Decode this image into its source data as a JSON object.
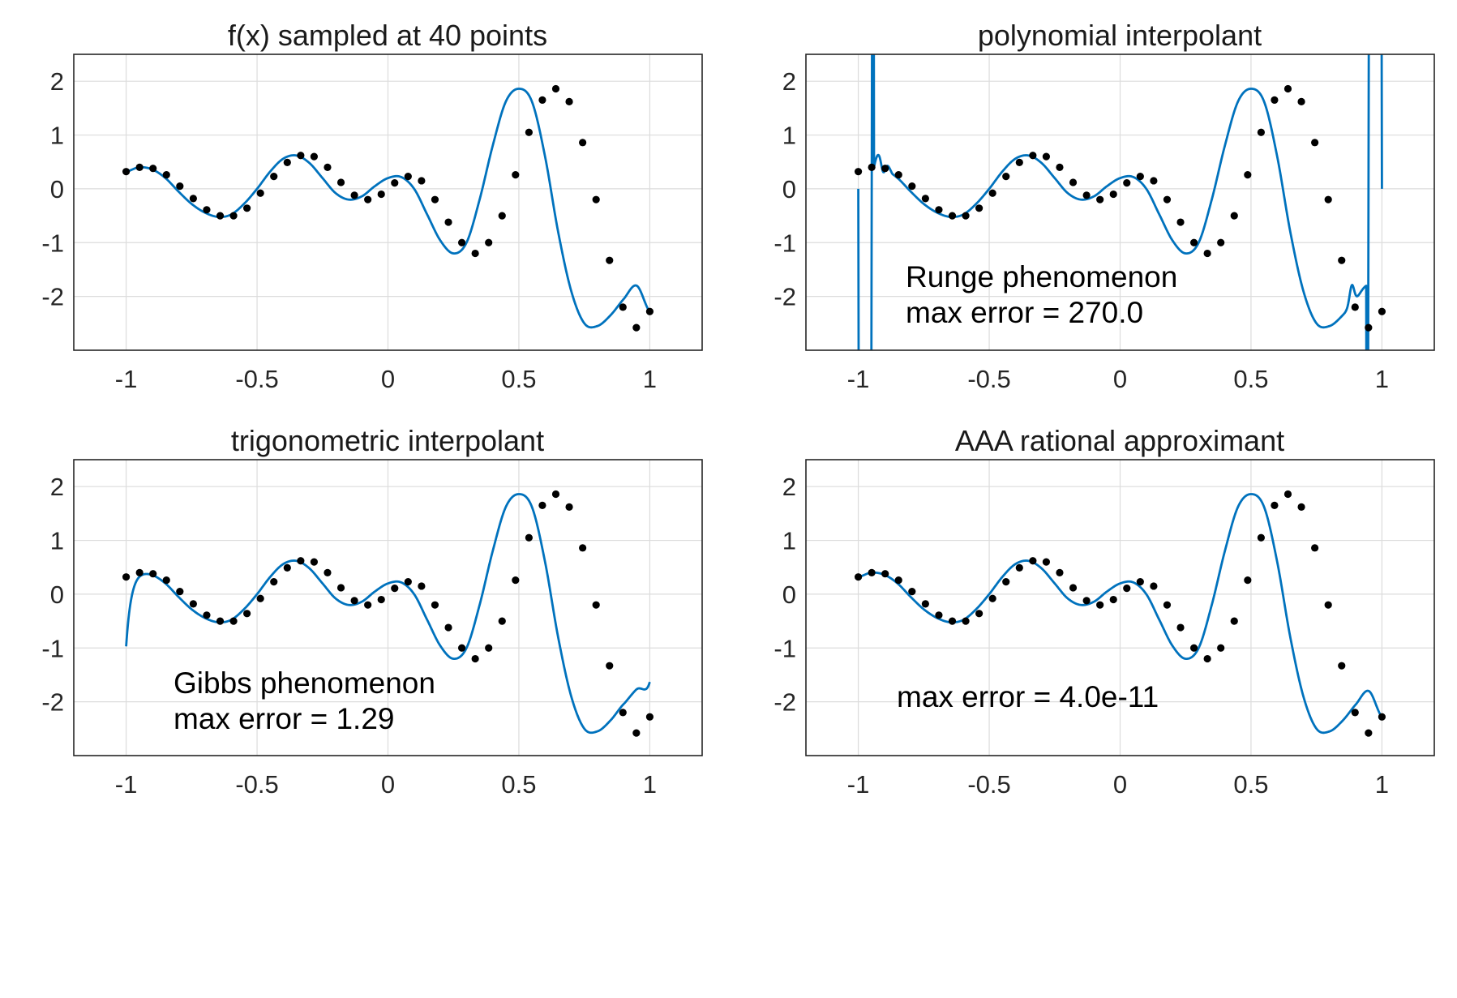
{
  "colors": {
    "curve": "#0072bd",
    "points": "#000000",
    "grid": "#dcdcdc",
    "axes": "#262626"
  },
  "chart_data": [
    {
      "type": "line",
      "title": "f(x) sampled at 40 points",
      "xlim": [
        -1.2,
        1.2
      ],
      "ylim": [
        -3,
        2.5
      ],
      "xticks": [
        -1,
        -0.5,
        0,
        0.5,
        1
      ],
      "xtick_labels": [
        "-1",
        "-0.5",
        "0",
        "0.5",
        "1"
      ],
      "yticks": [
        -2,
        -1,
        0,
        1,
        2
      ],
      "ytick_labels": [
        "-2",
        "-1",
        "0",
        "1",
        "2"
      ],
      "grid": true,
      "curve": "function",
      "annotations": [],
      "series": [
        {
          "kind": "curve",
          "x": [
            -1.0,
            -0.95,
            -0.9,
            -0.85,
            -0.8,
            -0.75,
            -0.7,
            -0.65,
            -0.6,
            -0.55,
            -0.5,
            -0.45,
            -0.4,
            -0.35,
            -0.3,
            -0.25,
            -0.2,
            -0.15,
            -0.1,
            -0.05,
            0.0,
            0.05,
            0.1,
            0.15,
            0.2,
            0.25,
            0.3,
            0.35,
            0.4,
            0.45,
            0.5,
            0.55,
            0.6,
            0.65,
            0.7,
            0.75,
            0.8,
            0.85,
            0.9,
            0.95,
            1.0
          ],
          "y": [
            0.32,
            0.4,
            0.36,
            0.2,
            -0.05,
            -0.28,
            -0.44,
            -0.52,
            -0.48,
            -0.28,
            0.0,
            0.32,
            0.56,
            0.62,
            0.48,
            0.2,
            -0.08,
            -0.2,
            -0.14,
            0.05,
            0.2,
            0.22,
            0.0,
            -0.48,
            -0.96,
            -1.2,
            -1.0,
            -0.2,
            0.8,
            1.62,
            1.86,
            1.62,
            0.6,
            -0.8,
            -1.9,
            -2.5,
            -2.55,
            -2.35,
            -2.05,
            -1.8,
            -2.28
          ]
        },
        {
          "kind": "points",
          "x": [
            -1.0,
            -0.9487,
            -0.8974,
            -0.8462,
            -0.7949,
            -0.7436,
            -0.6923,
            -0.641,
            -0.5897,
            -0.5385,
            -0.4872,
            -0.4359,
            -0.3846,
            -0.3333,
            -0.2821,
            -0.2308,
            -0.1795,
            -0.1282,
            -0.0769,
            -0.0256,
            0.0256,
            0.0769,
            0.1282,
            0.1795,
            0.2308,
            0.2821,
            0.3333,
            0.3846,
            0.4359,
            0.4872,
            0.5385,
            0.5897,
            0.641,
            0.6923,
            0.7436,
            0.7949,
            0.8462,
            0.8974,
            0.9487,
            1.0
          ],
          "y": [
            0.32,
            0.4,
            0.38,
            0.26,
            0.05,
            -0.18,
            -0.39,
            -0.5,
            -0.5,
            -0.36,
            -0.08,
            0.23,
            0.49,
            0.62,
            0.6,
            0.4,
            0.12,
            -0.12,
            -0.2,
            -0.1,
            0.11,
            0.23,
            0.15,
            -0.2,
            -0.62,
            -1.0,
            -1.2,
            -1.0,
            -0.5,
            0.26,
            1.05,
            1.65,
            1.86,
            1.62,
            0.86,
            -0.2,
            -1.33,
            -2.2,
            -2.58,
            -2.28
          ]
        }
      ]
    },
    {
      "type": "line",
      "title": "polynomial interpolant",
      "xlim": [
        -1.2,
        1.2
      ],
      "ylim": [
        -3,
        2.5
      ],
      "xticks": [
        -1,
        -0.5,
        0,
        0.5,
        1
      ],
      "xtick_labels": [
        "-1",
        "-0.5",
        "0",
        "0.5",
        "1"
      ],
      "yticks": [
        -2,
        -1,
        0,
        1,
        2
      ],
      "ytick_labels": [
        "-2",
        "-1",
        "0",
        "1",
        "2"
      ],
      "grid": true,
      "curve": "runge",
      "annotations": [
        "Runge phenomenon",
        "max error = 270.0"
      ],
      "series": [
        {
          "kind": "curve",
          "x": [],
          "y": []
        },
        {
          "kind": "points",
          "x": [
            -1.0,
            -0.9487,
            -0.8974,
            -0.8462,
            -0.7949,
            -0.7436,
            -0.6923,
            -0.641,
            -0.5897,
            -0.5385,
            -0.4872,
            -0.4359,
            -0.3846,
            -0.3333,
            -0.2821,
            -0.2308,
            -0.1795,
            -0.1282,
            -0.0769,
            -0.0256,
            0.0256,
            0.0769,
            0.1282,
            0.1795,
            0.2308,
            0.2821,
            0.3333,
            0.3846,
            0.4359,
            0.4872,
            0.5385,
            0.5897,
            0.641,
            0.6923,
            0.7436,
            0.7949,
            0.8462,
            0.8974,
            0.9487,
            1.0
          ],
          "y": [
            0.32,
            0.4,
            0.38,
            0.26,
            0.05,
            -0.18,
            -0.39,
            -0.5,
            -0.5,
            -0.36,
            -0.08,
            0.23,
            0.49,
            0.62,
            0.6,
            0.4,
            0.12,
            -0.12,
            -0.2,
            -0.1,
            0.11,
            0.23,
            0.15,
            -0.2,
            -0.62,
            -1.0,
            -1.2,
            -1.0,
            -0.5,
            0.26,
            1.05,
            1.65,
            1.86,
            1.62,
            0.86,
            -0.2,
            -1.33,
            -2.2,
            -2.58,
            -2.28
          ]
        }
      ]
    },
    {
      "type": "line",
      "title": "trigonometric interpolant",
      "xlim": [
        -1.2,
        1.2
      ],
      "ylim": [
        -3,
        2.5
      ],
      "xticks": [
        -1,
        -0.5,
        0,
        0.5,
        1
      ],
      "xtick_labels": [
        "-1",
        "-0.5",
        "0",
        "0.5",
        "1"
      ],
      "yticks": [
        -2,
        -1,
        0,
        1,
        2
      ],
      "ytick_labels": [
        "-2",
        "-1",
        "0",
        "1",
        "2"
      ],
      "grid": true,
      "curve": "gibbs",
      "annotations": [
        "Gibbs phenomenon",
        "max error = 1.29"
      ],
      "series": [
        {
          "kind": "curve",
          "x": [],
          "y": []
        },
        {
          "kind": "points",
          "x": [
            -1.0,
            -0.9487,
            -0.8974,
            -0.8462,
            -0.7949,
            -0.7436,
            -0.6923,
            -0.641,
            -0.5897,
            -0.5385,
            -0.4872,
            -0.4359,
            -0.3846,
            -0.3333,
            -0.2821,
            -0.2308,
            -0.1795,
            -0.1282,
            -0.0769,
            -0.0256,
            0.0256,
            0.0769,
            0.1282,
            0.1795,
            0.2308,
            0.2821,
            0.3333,
            0.3846,
            0.4359,
            0.4872,
            0.5385,
            0.5897,
            0.641,
            0.6923,
            0.7436,
            0.7949,
            0.8462,
            0.8974,
            0.9487,
            1.0
          ],
          "y": [
            0.32,
            0.4,
            0.38,
            0.26,
            0.05,
            -0.18,
            -0.39,
            -0.5,
            -0.5,
            -0.36,
            -0.08,
            0.23,
            0.49,
            0.62,
            0.6,
            0.4,
            0.12,
            -0.12,
            -0.2,
            -0.1,
            0.11,
            0.23,
            0.15,
            -0.2,
            -0.62,
            -1.0,
            -1.2,
            -1.0,
            -0.5,
            0.26,
            1.05,
            1.65,
            1.86,
            1.62,
            0.86,
            -0.2,
            -1.33,
            -2.2,
            -2.58,
            -2.28
          ]
        }
      ]
    },
    {
      "type": "line",
      "title": "AAA rational approximant",
      "xlim": [
        -1.2,
        1.2
      ],
      "ylim": [
        -3,
        2.5
      ],
      "xticks": [
        -1,
        -0.5,
        0,
        0.5,
        1
      ],
      "xtick_labels": [
        "-1",
        "-0.5",
        "0",
        "0.5",
        "1"
      ],
      "yticks": [
        -2,
        -1,
        0,
        1,
        2
      ],
      "ytick_labels": [
        "-2",
        "-1",
        "0",
        "1",
        "2"
      ],
      "grid": true,
      "curve": "function",
      "annotations": [
        "max error = 4.0e-11"
      ],
      "series": [
        {
          "kind": "curve",
          "x": [],
          "y": []
        },
        {
          "kind": "points",
          "x": [
            -1.0,
            -0.9487,
            -0.8974,
            -0.8462,
            -0.7949,
            -0.7436,
            -0.6923,
            -0.641,
            -0.5897,
            -0.5385,
            -0.4872,
            -0.4359,
            -0.3846,
            -0.3333,
            -0.2821,
            -0.2308,
            -0.1795,
            -0.1282,
            -0.0769,
            -0.0256,
            0.0256,
            0.0769,
            0.1282,
            0.1795,
            0.2308,
            0.2821,
            0.3333,
            0.3846,
            0.4359,
            0.4872,
            0.5385,
            0.5897,
            0.641,
            0.6923,
            0.7436,
            0.7949,
            0.8462,
            0.8974,
            0.9487,
            1.0
          ],
          "y": [
            0.32,
            0.4,
            0.38,
            0.26,
            0.05,
            -0.18,
            -0.39,
            -0.5,
            -0.5,
            -0.36,
            -0.08,
            0.23,
            0.49,
            0.62,
            0.6,
            0.4,
            0.12,
            -0.12,
            -0.2,
            -0.1,
            0.11,
            0.23,
            0.15,
            -0.2,
            -0.62,
            -1.0,
            -1.2,
            -1.0,
            -0.5,
            0.26,
            1.05,
            1.65,
            1.86,
            1.62,
            0.86,
            -0.2,
            -1.33,
            -2.2,
            -2.58,
            -2.28
          ]
        }
      ]
    }
  ]
}
